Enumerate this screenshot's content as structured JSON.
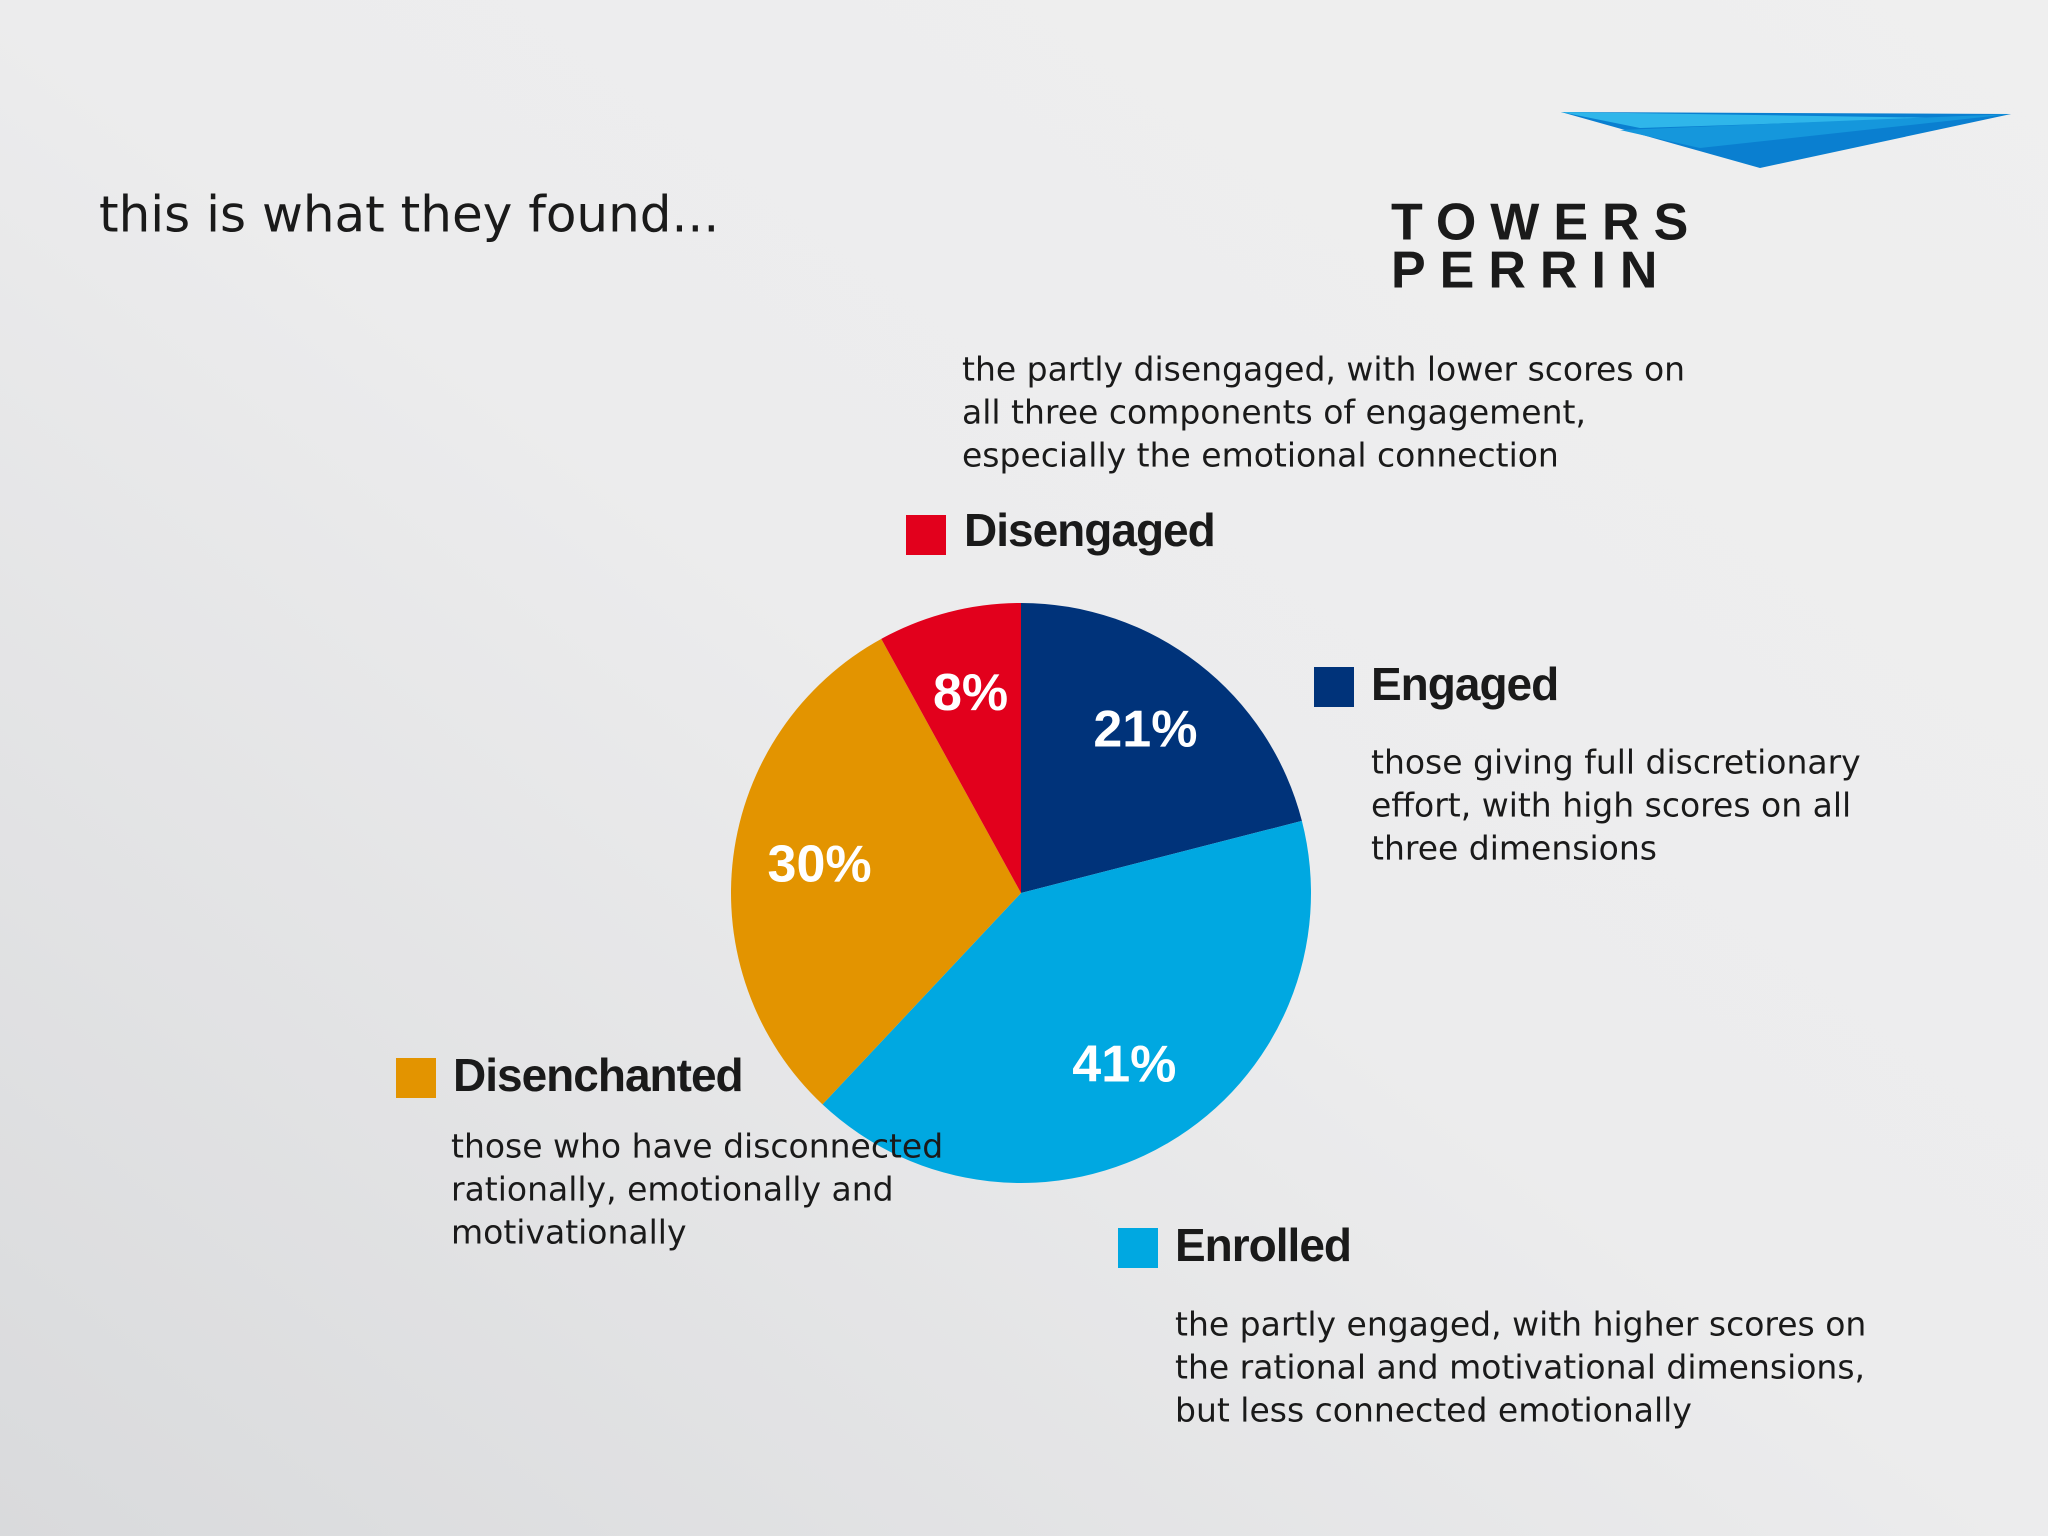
{
  "chart_data": {
    "type": "pie",
    "title": "this is what they found...",
    "categories": [
      "Engaged",
      "Enrolled",
      "Disenchanted",
      "Disengaged"
    ],
    "values": [
      21,
      41,
      30,
      8
    ],
    "value_labels": [
      "21%",
      "41%",
      "30%",
      "8%"
    ],
    "colors": [
      "#00337a",
      "#00a8e1",
      "#e39400",
      "#e2001c"
    ],
    "descriptions": [
      [
        "those giving full discretionary",
        "effort, with high scores on all",
        "three dimensions"
      ],
      [
        "the partly engaged, with higher scores on",
        "the rational and motivational dimensions,",
        "but less connected emotionally"
      ],
      [
        "those who have disconnected",
        "rationally, emotionally and",
        "motivationally"
      ],
      [
        "the partly disengaged, with lower scores on",
        "all three components of engagement,",
        "especially the emotional connection"
      ]
    ]
  },
  "logo": {
    "lines": [
      "TOWERS",
      "PERRIN"
    ]
  }
}
